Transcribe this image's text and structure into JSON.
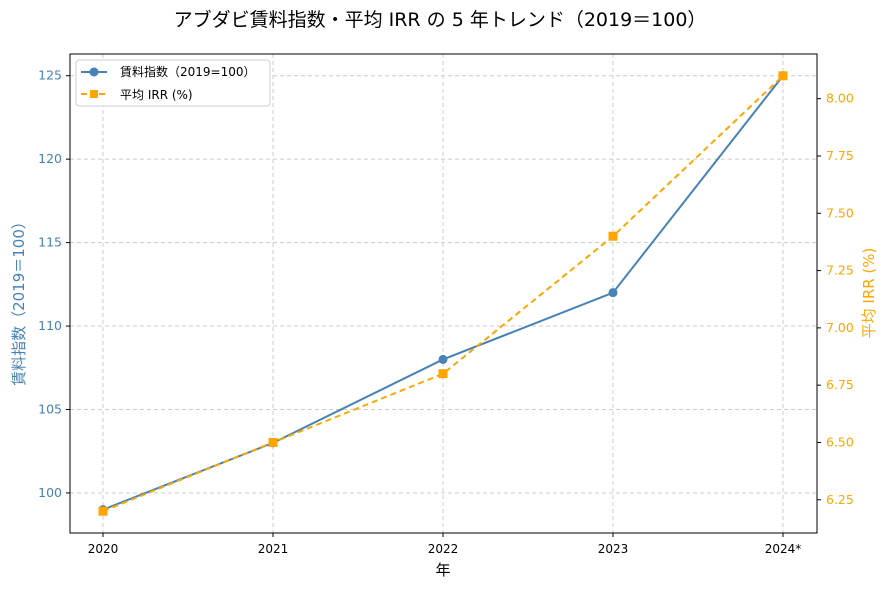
{
  "chart_data": {
    "type": "line",
    "title": "アブダビ賃料指数・平均 IRR の 5 年トレンド（2019＝100）",
    "xlabel": "年",
    "categories": [
      "2020",
      "2021",
      "2022",
      "2023",
      "2024*"
    ],
    "grid": true,
    "legend_position": "top-left",
    "series": [
      {
        "name": "賃料指数（2019=100）",
        "axis": "left",
        "color": "#4682b4",
        "marker": "circle",
        "line_style": "solid",
        "values": [
          99,
          103,
          108,
          112,
          125
        ]
      },
      {
        "name": "平均 IRR (%)",
        "axis": "right",
        "color": "#ffa500",
        "marker": "square",
        "line_style": "dashed",
        "values": [
          6.2,
          6.5,
          6.8,
          7.4,
          8.1
        ]
      }
    ],
    "y_left": {
      "label": "賃料指数（2019＝100）",
      "ylim": [
        97.6,
        126.3
      ],
      "ticks": [
        "100",
        "105",
        "110",
        "115",
        "120",
        "125"
      ]
    },
    "y_right": {
      "label": "平均 IRR (%)",
      "ylim": [
        6.105,
        8.195
      ],
      "ticks": [
        "6.25",
        "6.50",
        "6.75",
        "7.00",
        "7.25",
        "7.50",
        "7.75",
        "8.00"
      ]
    }
  }
}
